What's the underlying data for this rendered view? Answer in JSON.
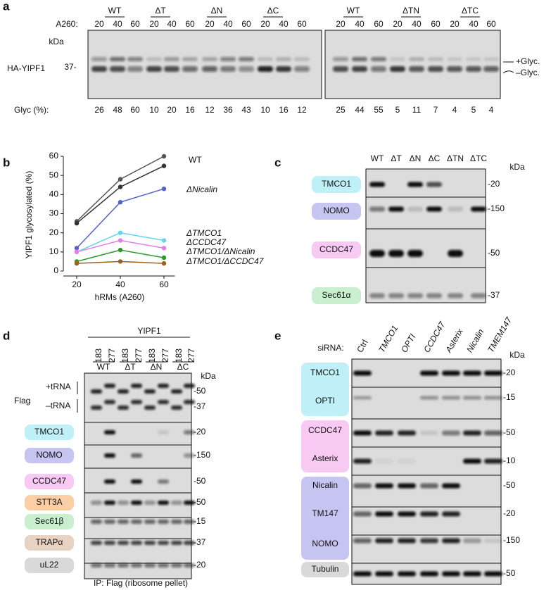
{
  "panel_labels": [
    "a",
    "b",
    "c",
    "d",
    "e"
  ],
  "panel_a": {
    "groups": [
      "WT",
      "ΔT",
      "ΔN",
      "ΔC",
      "WT",
      "ΔTN",
      "ΔTC"
    ],
    "a260_label": "A260:",
    "a260": [
      20,
      40,
      60,
      20,
      40,
      60,
      20,
      40,
      60,
      20,
      40,
      60,
      20,
      40,
      60,
      20,
      40,
      60,
      20,
      40,
      60
    ],
    "kda": "kDa",
    "protein": "HA-YIPF1",
    "marker": "37-",
    "plus_glyc": "+Glyc.",
    "minus_glyc": "–Glyc.",
    "glyc_label": "Glyc (%):",
    "glyc": [
      26,
      48,
      60,
      10,
      20,
      16,
      12,
      36,
      43,
      10,
      16,
      12,
      25,
      44,
      55,
      5,
      11,
      7,
      4,
      5,
      4
    ]
  },
  "chart_data": {
    "type": "line",
    "ylabel": "YIPF1 glycosylated (%)",
    "xlabel": "hRMs (A260)",
    "x": [
      20,
      40,
      60
    ],
    "xlim": [
      15,
      65
    ],
    "xticks": [
      20,
      40,
      60
    ],
    "ylim": [
      0,
      60
    ],
    "yticks": [
      0,
      10,
      20,
      30,
      40,
      50,
      60
    ],
    "series": [
      {
        "name": "WT",
        "color": "#555555",
        "values": [
          26,
          48,
          60
        ]
      },
      {
        "color": "#333333",
        "values": [
          25,
          44,
          55
        ]
      },
      {
        "name": "ΔNicalin",
        "color": "#5560c8",
        "values": [
          12,
          36,
          43
        ]
      },
      {
        "name": "ΔTMCO1",
        "color": "#5fd6ee",
        "values": [
          10,
          20,
          16
        ]
      },
      {
        "name": "ΔCCDC47",
        "color": "#e57de8",
        "values": [
          10,
          16,
          12
        ]
      },
      {
        "name": "ΔTMCO1/ΔNicalin",
        "color": "#2a9a2a",
        "values": [
          5,
          11,
          7
        ]
      },
      {
        "name": "ΔTMCO1/ΔCCDC47",
        "color": "#a0601a",
        "values": [
          4,
          5,
          4
        ]
      }
    ]
  },
  "panel_c": {
    "columns": [
      "WT",
      "ΔT",
      "ΔN",
      "ΔC",
      "ΔTN",
      "ΔTC"
    ],
    "kda": "kDa",
    "rows": [
      {
        "label": "TMCO1",
        "marker": "-20"
      },
      {
        "label": "NOMO",
        "marker": "-150"
      },
      {
        "label": "CCDC47",
        "marker": "-50"
      },
      {
        "label": "Sec61α",
        "marker": "-37"
      }
    ]
  },
  "panel_d": {
    "title": "YIPF1",
    "lanes": [
      "183",
      "277",
      "183",
      "277",
      "183",
      "277",
      "183",
      "277"
    ],
    "groups": [
      "WT",
      "ΔT",
      "ΔN",
      "ΔC"
    ],
    "kda": "kDa",
    "flag": "Flag",
    "plus_trna": "+tRNA",
    "minus_trna": "–tRNA",
    "flag_markers": [
      "-50",
      "-37"
    ],
    "rows": [
      {
        "label": "TMCO1",
        "marker": "-20"
      },
      {
        "label": "NOMO",
        "marker": "-150"
      },
      {
        "label": "CCDC47",
        "marker": "-50"
      },
      {
        "label": "STT3A",
        "marker": "-50"
      },
      {
        "label": "Sec61β",
        "marker": "-15"
      },
      {
        "label": "TRAPα",
        "marker": "-37"
      },
      {
        "label": "uL22",
        "marker": "-20"
      }
    ],
    "footer": "IP: Flag (ribosome pellet)"
  },
  "panel_e": {
    "sirna_label": "siRNA:",
    "lanes": [
      "Ctrl",
      "TMCO1",
      "OPTI",
      "CCDC47",
      "Asterix",
      "Nicalin",
      "TMEM147"
    ],
    "kda": "kDa",
    "rows": [
      {
        "label": "TMCO1",
        "marker": "-20"
      },
      {
        "label": "OPTI",
        "marker": "-15"
      },
      {
        "label": "CCDC47",
        "marker": "-50"
      },
      {
        "label": "Asterix",
        "marker": "-10"
      },
      {
        "label": "Nicalin",
        "marker": "-50"
      },
      {
        "label": "TM147",
        "marker": "-20"
      },
      {
        "label": "NOMO",
        "marker": "-150"
      },
      {
        "label": "Tubulin",
        "marker": "-50"
      }
    ]
  }
}
